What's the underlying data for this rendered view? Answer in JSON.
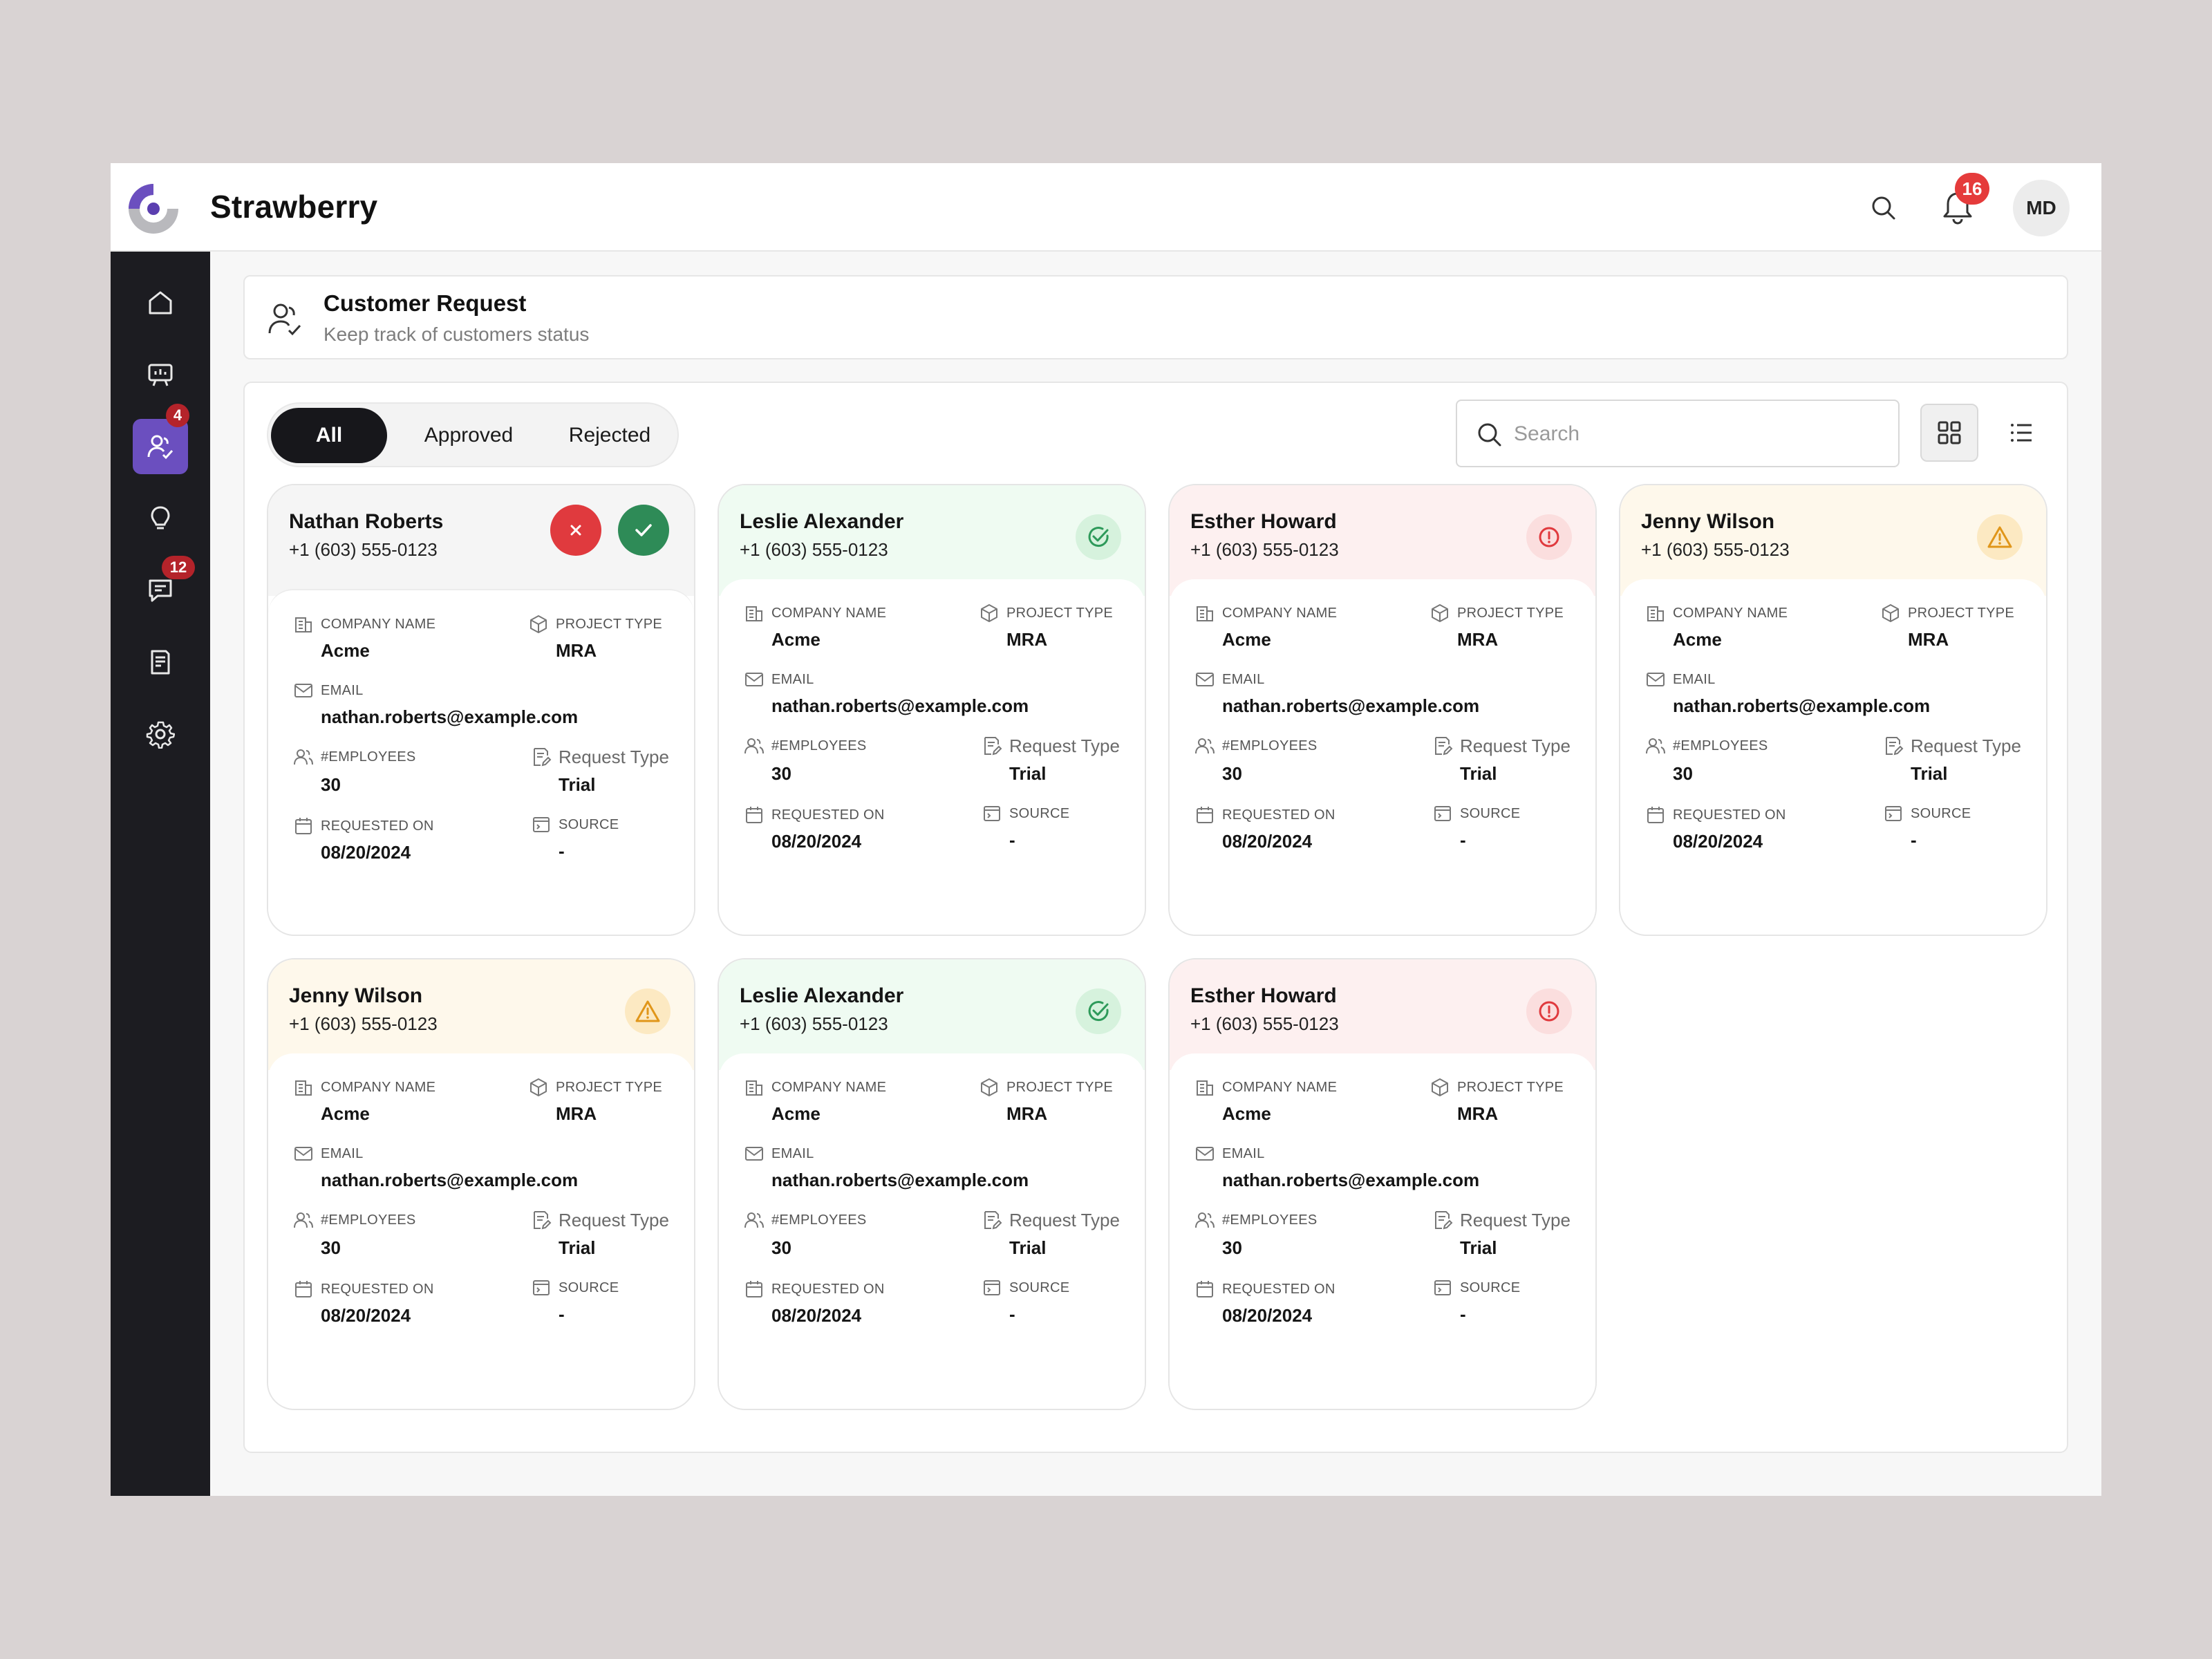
{
  "app": {
    "title": "Strawberry",
    "notifications": "16",
    "user_initials": "MD"
  },
  "sidebar": {
    "items": [
      {
        "name": "home",
        "badge": ""
      },
      {
        "name": "presentation",
        "badge": ""
      },
      {
        "name": "customers",
        "badge": "4"
      },
      {
        "name": "ideas",
        "badge": ""
      },
      {
        "name": "messages",
        "badge": "12"
      },
      {
        "name": "reports",
        "badge": ""
      },
      {
        "name": "settings",
        "badge": ""
      }
    ]
  },
  "header": {
    "title": "Customer Request",
    "subtitle": "Keep track of customers status"
  },
  "tabs": [
    {
      "label": "All",
      "active": true
    },
    {
      "label": "Approved"
    },
    {
      "label": "Rejected"
    }
  ],
  "search": {
    "placeholder": "Search"
  },
  "labels": {
    "company": "COMPANY NAME",
    "project": "PROJECT TYPE",
    "email": "EMAIL",
    "employees": "#EMPLOYEES",
    "request_type": "Request Type",
    "requested_on": "REQUESTED ON",
    "source": "SOURCE"
  },
  "cards": [
    {
      "status": "neutral",
      "name": "Nathan Roberts",
      "phone": "+1 (603) 555-0123",
      "company": "Acme",
      "project": "MRA",
      "email": "nathan.roberts@example.com",
      "employees": "30",
      "request_type": "Trial",
      "requested_on": "08/20/2024",
      "source": "-"
    },
    {
      "status": "approved",
      "name": "Leslie Alexander",
      "phone": "+1 (603) 555-0123",
      "company": "Acme",
      "project": "MRA",
      "email": "nathan.roberts@example.com",
      "employees": "30",
      "request_type": "Trial",
      "requested_on": "08/20/2024",
      "source": "-"
    },
    {
      "status": "rejected",
      "name": "Esther Howard",
      "phone": "+1 (603) 555-0123",
      "company": "Acme",
      "project": "MRA",
      "email": "nathan.roberts@example.com",
      "employees": "30",
      "request_type": "Trial",
      "requested_on": "08/20/2024",
      "source": "-"
    },
    {
      "status": "pending",
      "name": "Jenny Wilson",
      "phone": "+1 (603) 555-0123",
      "company": "Acme",
      "project": "MRA",
      "email": "nathan.roberts@example.com",
      "employees": "30",
      "request_type": "Trial",
      "requested_on": "08/20/2024",
      "source": "-"
    },
    {
      "status": "pending",
      "name": "Jenny Wilson",
      "phone": "+1 (603) 555-0123",
      "company": "Acme",
      "project": "MRA",
      "email": "nathan.roberts@example.com",
      "employees": "30",
      "request_type": "Trial",
      "requested_on": "08/20/2024",
      "source": "-"
    },
    {
      "status": "approved",
      "name": "Leslie Alexander",
      "phone": "+1 (603) 555-0123",
      "company": "Acme",
      "project": "MRA",
      "email": "nathan.roberts@example.com",
      "employees": "30",
      "request_type": "Trial",
      "requested_on": "08/20/2024",
      "source": "-"
    },
    {
      "status": "rejected",
      "name": "Esther Howard",
      "phone": "+1 (603) 555-0123",
      "company": "Acme",
      "project": "MRA",
      "email": "nathan.roberts@example.com",
      "employees": "30",
      "request_type": "Trial",
      "requested_on": "08/20/2024",
      "source": "-"
    }
  ],
  "colors": {
    "accent": "#6b4fbf",
    "sidebar": "#1c1c21",
    "approve": "#2e8b57",
    "reject": "#e03a3e",
    "warning": "#e0961a"
  }
}
